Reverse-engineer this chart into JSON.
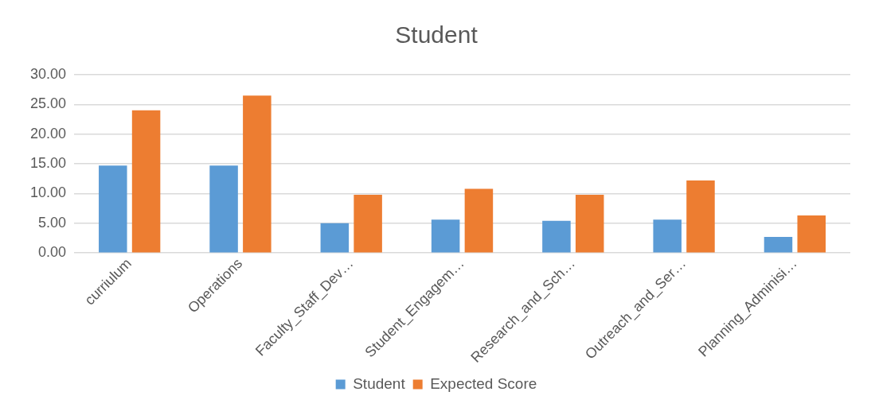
{
  "chart_data": {
    "type": "bar",
    "title": "Student",
    "categories": [
      "curriulum",
      "Operations",
      "Faculty_Staff_Dev…",
      "Student_Engagem…",
      "Research_and_Sch…",
      "Outreach_and_Ser…",
      "Planning_Adminisi…"
    ],
    "series": [
      {
        "name": "Student",
        "color": "#5b9bd5",
        "values": [
          14.7,
          14.7,
          5.0,
          5.6,
          5.4,
          5.6,
          2.7
        ]
      },
      {
        "name": "Expected Score",
        "color": "#ed7d31",
        "values": [
          24.0,
          26.5,
          9.8,
          10.8,
          9.8,
          12.2,
          6.3
        ]
      }
    ],
    "ylim": [
      0,
      30
    ],
    "yticks": [
      {
        "value": 0,
        "label": "0.00"
      },
      {
        "value": 5,
        "label": "5.00"
      },
      {
        "value": 10,
        "label": "10.00"
      },
      {
        "value": 15,
        "label": "15.00"
      },
      {
        "value": 20,
        "label": "20.00"
      },
      {
        "value": 25,
        "label": "25.00"
      },
      {
        "value": 30,
        "label": "30.00"
      }
    ],
    "grid": "y",
    "legend": "bottom"
  }
}
